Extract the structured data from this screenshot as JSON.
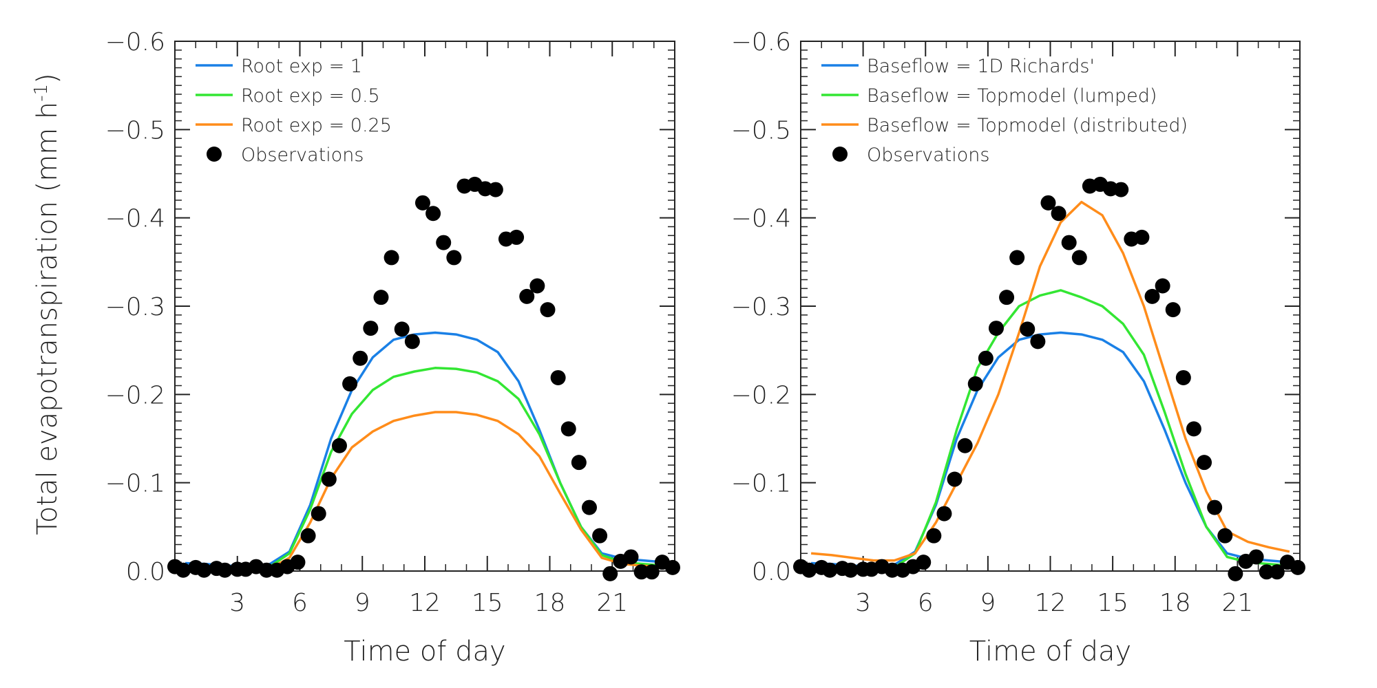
{
  "chart_data": [
    {
      "type": "line",
      "xlabel": "Time of day",
      "ylabel": "Total evapotranspiration (mm h",
      "ylabel_sup": "-1",
      "ylabel_close": ")",
      "xlim": [
        0,
        24
      ],
      "ylim": [
        0.0,
        -0.6
      ],
      "xticks": [
        3,
        6,
        9,
        12,
        15,
        18,
        21
      ],
      "xtick_labels": [
        "3",
        "6",
        "9",
        "12",
        "15",
        "18",
        "21"
      ],
      "yticks": [
        0.0,
        -0.1,
        -0.2,
        -0.3,
        -0.4,
        -0.5,
        -0.6
      ],
      "ytick_labels": [
        "0.0",
        "−0.1",
        "−0.2",
        "−0.3",
        "−0.4",
        "−0.5",
        "−0.6"
      ],
      "legend_position": "top-left",
      "x": [
        0.5,
        1.5,
        2.5,
        3.5,
        4.5,
        5.5,
        6.5,
        7.5,
        8.5,
        9.5,
        10.5,
        11.5,
        12.5,
        13.5,
        14.5,
        15.5,
        16.5,
        17.5,
        18.5,
        19.5,
        20.5,
        21.5,
        22.5,
        23.5
      ],
      "series": [
        {
          "name": "Root exp = 1",
          "color": "#1a80e6",
          "values": [
            -0.009,
            -0.008,
            -0.006,
            -0.006,
            -0.007,
            -0.022,
            -0.075,
            -0.15,
            -0.205,
            -0.242,
            -0.262,
            -0.268,
            -0.27,
            -0.268,
            -0.262,
            -0.248,
            -0.215,
            -0.16,
            -0.1,
            -0.05,
            -0.02,
            -0.014,
            -0.012,
            -0.01
          ]
        },
        {
          "name": "Root exp = 0.5",
          "color": "#33e633",
          "values": [
            -0.005,
            -0.004,
            -0.003,
            -0.003,
            -0.004,
            -0.02,
            -0.07,
            -0.135,
            -0.178,
            -0.205,
            -0.22,
            -0.226,
            -0.23,
            -0.229,
            -0.225,
            -0.215,
            -0.195,
            -0.155,
            -0.1,
            -0.05,
            -0.018,
            -0.01,
            -0.008,
            -0.006
          ]
        },
        {
          "name": "Root exp = 0.25",
          "color": "#ff8c1a",
          "values": [
            -0.002,
            -0.001,
            -0.001,
            -0.001,
            -0.002,
            -0.015,
            -0.055,
            -0.105,
            -0.14,
            -0.158,
            -0.17,
            -0.176,
            -0.18,
            -0.18,
            -0.177,
            -0.17,
            -0.155,
            -0.13,
            -0.088,
            -0.047,
            -0.015,
            -0.008,
            -0.006,
            -0.004
          ]
        }
      ],
      "observations": {
        "name": "Observations",
        "color": "#000000",
        "points": [
          [
            0.0,
            -0.005
          ],
          [
            0.4,
            -0.001
          ],
          [
            1.0,
            -0.004
          ],
          [
            1.4,
            -0.001
          ],
          [
            2.0,
            -0.003
          ],
          [
            2.4,
            -0.001
          ],
          [
            3.0,
            -0.002
          ],
          [
            3.4,
            -0.002
          ],
          [
            3.9,
            -0.005
          ],
          [
            4.4,
            -0.001
          ],
          [
            4.9,
            -0.001
          ],
          [
            5.4,
            -0.005
          ],
          [
            5.9,
            -0.01
          ],
          [
            6.4,
            -0.04
          ],
          [
            6.9,
            -0.065
          ],
          [
            7.4,
            -0.104
          ],
          [
            7.9,
            -0.142
          ],
          [
            8.4,
            -0.212
          ],
          [
            8.9,
            -0.241
          ],
          [
            9.4,
            -0.275
          ],
          [
            9.9,
            -0.31
          ],
          [
            10.4,
            -0.355
          ],
          [
            10.9,
            -0.274
          ],
          [
            11.4,
            -0.26
          ],
          [
            11.9,
            -0.417
          ],
          [
            12.4,
            -0.405
          ],
          [
            12.9,
            -0.372
          ],
          [
            13.4,
            -0.355
          ],
          [
            13.9,
            -0.436
          ],
          [
            14.4,
            -0.438
          ],
          [
            14.9,
            -0.433
          ],
          [
            15.4,
            -0.432
          ],
          [
            15.9,
            -0.376
          ],
          [
            16.4,
            -0.378
          ],
          [
            16.9,
            -0.311
          ],
          [
            17.4,
            -0.323
          ],
          [
            17.9,
            -0.296
          ],
          [
            18.4,
            -0.219
          ],
          [
            18.9,
            -0.161
          ],
          [
            19.4,
            -0.123
          ],
          [
            19.9,
            -0.072
          ],
          [
            20.4,
            -0.04
          ],
          [
            20.9,
            0.003
          ],
          [
            21.4,
            -0.011
          ],
          [
            21.9,
            -0.016
          ],
          [
            22.4,
            0.001
          ],
          [
            22.9,
            0.001
          ],
          [
            23.4,
            -0.01
          ],
          [
            23.9,
            -0.004
          ]
        ]
      }
    },
    {
      "type": "line",
      "xlabel": "Time of day",
      "xlim": [
        0,
        24
      ],
      "ylim": [
        0.0,
        -0.6
      ],
      "xticks": [
        3,
        6,
        9,
        12,
        15,
        18,
        21
      ],
      "xtick_labels": [
        "3",
        "6",
        "9",
        "12",
        "15",
        "18",
        "21"
      ],
      "yticks": [
        0.0,
        -0.1,
        -0.2,
        -0.3,
        -0.4,
        -0.5,
        -0.6
      ],
      "ytick_labels": [
        "0.0",
        "−0.1",
        "−0.2",
        "−0.3",
        "−0.4",
        "−0.5",
        "−0.6"
      ],
      "legend_position": "top-left",
      "x": [
        0.5,
        1.5,
        2.5,
        3.5,
        4.5,
        5.5,
        6.5,
        7.5,
        8.5,
        9.5,
        10.5,
        11.5,
        12.5,
        13.5,
        14.5,
        15.5,
        16.5,
        17.5,
        18.5,
        19.5,
        20.5,
        21.5,
        22.5,
        23.5
      ],
      "series": [
        {
          "name": "Baseflow = 1D Richards'",
          "color": "#1a80e6",
          "values": [
            -0.009,
            -0.008,
            -0.006,
            -0.006,
            -0.007,
            -0.022,
            -0.075,
            -0.15,
            -0.205,
            -0.242,
            -0.262,
            -0.268,
            -0.27,
            -0.268,
            -0.262,
            -0.248,
            -0.215,
            -0.16,
            -0.1,
            -0.05,
            -0.02,
            -0.014,
            -0.012,
            -0.01
          ]
        },
        {
          "name": "Baseflow = Topmodel (lumped)",
          "color": "#33e633",
          "values": [
            -0.005,
            -0.004,
            -0.003,
            -0.003,
            -0.004,
            -0.02,
            -0.078,
            -0.16,
            -0.23,
            -0.27,
            -0.3,
            -0.312,
            -0.318,
            -0.31,
            -0.3,
            -0.28,
            -0.245,
            -0.18,
            -0.11,
            -0.05,
            -0.016,
            -0.01,
            -0.008,
            -0.006
          ]
        },
        {
          "name": "Baseflow = Topmodel (distributed)",
          "color": "#ff8c1a",
          "values": [
            -0.02,
            -0.018,
            -0.015,
            -0.012,
            -0.012,
            -0.02,
            -0.055,
            -0.1,
            -0.145,
            -0.2,
            -0.27,
            -0.345,
            -0.395,
            -0.418,
            -0.403,
            -0.36,
            -0.3,
            -0.225,
            -0.15,
            -0.09,
            -0.045,
            -0.033,
            -0.027,
            -0.022
          ]
        }
      ],
      "observations": {
        "name": "Observations",
        "color": "#000000",
        "points": [
          [
            0.0,
            -0.005
          ],
          [
            0.4,
            -0.001
          ],
          [
            1.0,
            -0.004
          ],
          [
            1.4,
            -0.001
          ],
          [
            2.0,
            -0.003
          ],
          [
            2.4,
            -0.001
          ],
          [
            3.0,
            -0.002
          ],
          [
            3.4,
            -0.002
          ],
          [
            3.9,
            -0.005
          ],
          [
            4.4,
            -0.001
          ],
          [
            4.9,
            -0.001
          ],
          [
            5.4,
            -0.005
          ],
          [
            5.9,
            -0.01
          ],
          [
            6.4,
            -0.04
          ],
          [
            6.9,
            -0.065
          ],
          [
            7.4,
            -0.104
          ],
          [
            7.9,
            -0.142
          ],
          [
            8.4,
            -0.212
          ],
          [
            8.9,
            -0.241
          ],
          [
            9.4,
            -0.275
          ],
          [
            9.9,
            -0.31
          ],
          [
            10.4,
            -0.355
          ],
          [
            10.9,
            -0.274
          ],
          [
            11.4,
            -0.26
          ],
          [
            11.9,
            -0.417
          ],
          [
            12.4,
            -0.405
          ],
          [
            12.9,
            -0.372
          ],
          [
            13.4,
            -0.355
          ],
          [
            13.9,
            -0.436
          ],
          [
            14.4,
            -0.438
          ],
          [
            14.9,
            -0.433
          ],
          [
            15.4,
            -0.432
          ],
          [
            15.9,
            -0.376
          ],
          [
            16.4,
            -0.378
          ],
          [
            16.9,
            -0.311
          ],
          [
            17.4,
            -0.323
          ],
          [
            17.9,
            -0.296
          ],
          [
            18.4,
            -0.219
          ],
          [
            18.9,
            -0.161
          ],
          [
            19.4,
            -0.123
          ],
          [
            19.9,
            -0.072
          ],
          [
            20.4,
            -0.04
          ],
          [
            20.9,
            0.003
          ],
          [
            21.4,
            -0.011
          ],
          [
            21.9,
            -0.016
          ],
          [
            22.4,
            0.001
          ],
          [
            22.9,
            0.001
          ],
          [
            23.4,
            -0.01
          ],
          [
            23.9,
            -0.004
          ]
        ]
      }
    }
  ]
}
